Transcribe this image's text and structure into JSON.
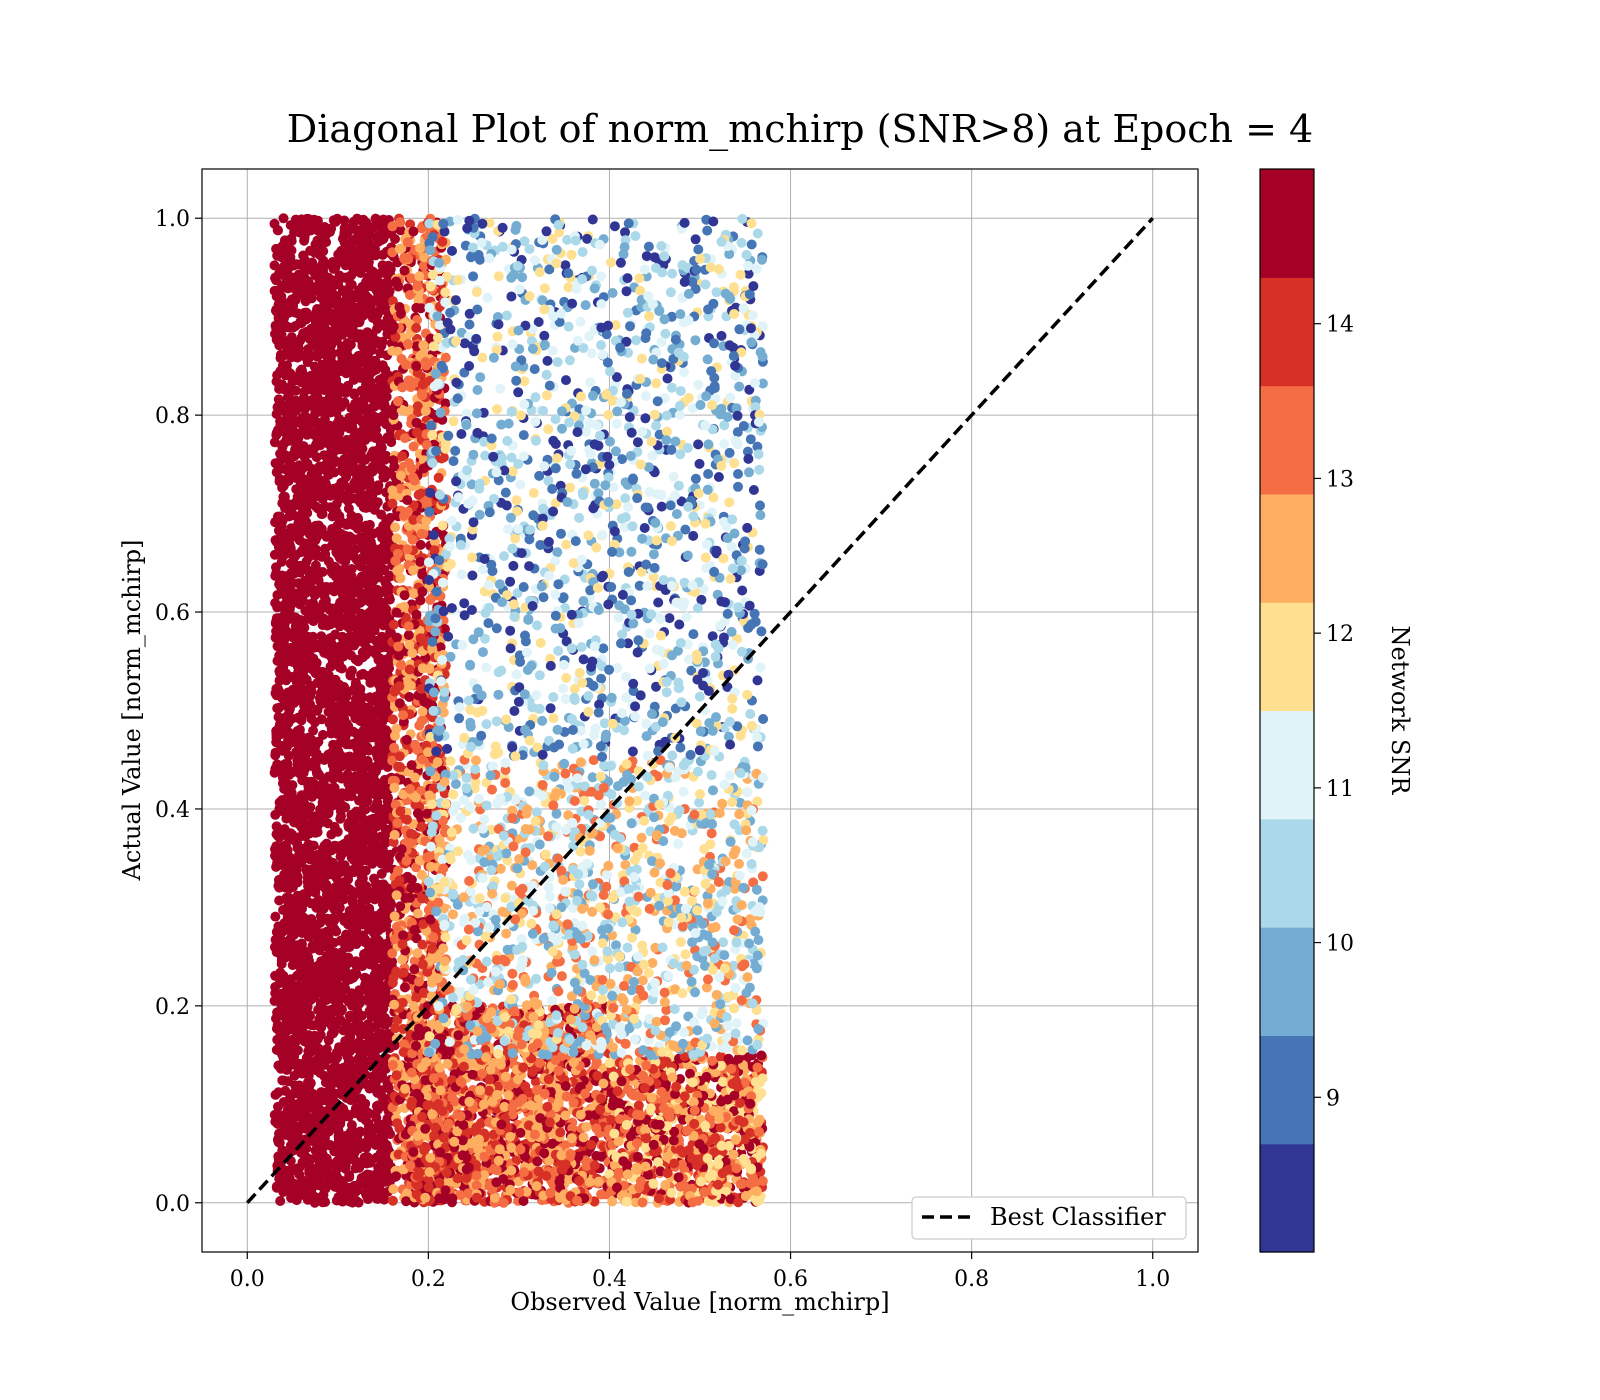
{
  "chart_data": {
    "type": "scatter",
    "title": "Diagonal Plot of norm_mchirp (SNR>8) at Epoch = 4",
    "xlabel": "Observed Value [norm_mchirp]",
    "ylabel": "Actual Value [norm_mchirp]",
    "xlim": [
      -0.05,
      1.05
    ],
    "ylim": [
      -0.05,
      1.05
    ],
    "xticks": [
      "0.0",
      "0.2",
      "0.4",
      "0.6",
      "0.8",
      "1.0"
    ],
    "yticks": [
      "0.0",
      "0.2",
      "0.4",
      "0.6",
      "0.8",
      "1.0"
    ],
    "grid": true,
    "legend_position": "lower-right",
    "reference_line": {
      "name": "Best Classifier",
      "style": "dashed",
      "color": "#000000",
      "x": [
        0.0,
        1.0
      ],
      "y": [
        0.0,
        1.0
      ]
    },
    "colorbar": {
      "label": "Network SNR",
      "range": [
        8.0,
        15.0
      ],
      "ticks": [
        "9",
        "10",
        "11",
        "12",
        "13",
        "14"
      ],
      "levels": [
        8.0,
        8.7,
        9.4,
        10.1,
        10.8,
        11.5,
        12.2,
        12.9,
        13.6,
        14.3,
        15.0
      ],
      "colors": [
        "#313695",
        "#4575b4",
        "#74add1",
        "#abd9e9",
        "#e0f3f8",
        "#fee090",
        "#fdae61",
        "#f46d43",
        "#d73027",
        "#a50026"
      ]
    },
    "series": [
      {
        "snr_bands": [
          {
            "x_range": [
              0.03,
              0.16
            ],
            "y_range": [
              0.0,
              1.0
            ],
            "snr": [
              14.3,
              15.0
            ],
            "density": 4200
          },
          {
            "x_range": [
              0.16,
              0.22
            ],
            "y_range": [
              0.0,
              1.0
            ],
            "snr": [
              12.2,
              15.0
            ],
            "density": 1400
          },
          {
            "x_range": [
              0.18,
              0.4
            ],
            "y_range": [
              0.0,
              0.2
            ],
            "snr": [
              12.2,
              15.0
            ],
            "density": 1500
          },
          {
            "x_range": [
              0.4,
              0.57
            ],
            "y_range": [
              0.0,
              0.15
            ],
            "snr": [
              11.5,
              15.0
            ],
            "density": 900
          },
          {
            "x_range": [
              0.2,
              0.57
            ],
            "y_range": [
              0.15,
              0.45
            ],
            "snr": [
              9.4,
              13.6
            ],
            "density": 1300
          },
          {
            "x_range": [
              0.2,
              0.57
            ],
            "y_range": [
              0.45,
              1.0
            ],
            "snr": [
              8.0,
              12.2
            ],
            "density": 1500
          }
        ]
      }
    ]
  }
}
